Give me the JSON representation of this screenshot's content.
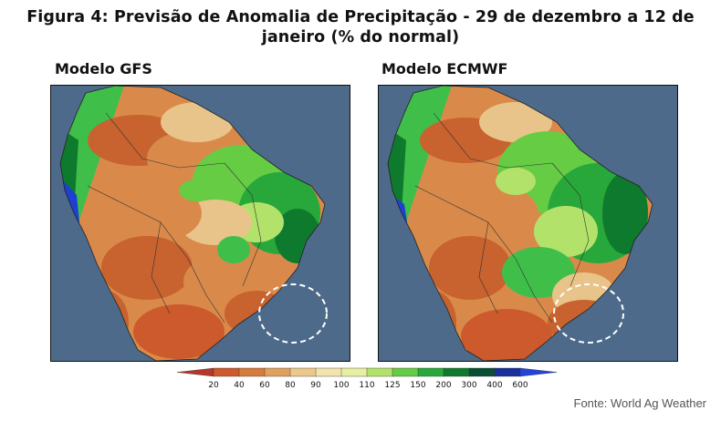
{
  "figure": {
    "title": "Figura 4: Previsão de Anomalia de Precipitação - 29 de dezembro a 12 de janeiro (% do normal)",
    "source": "Fonte: World Ag Weather"
  },
  "maps": [
    {
      "label": "Modelo GFS"
    },
    {
      "label": "Modelo ECMWF"
    }
  ],
  "legend": {
    "ticks": [
      "20",
      "40",
      "60",
      "80",
      "90",
      "100",
      "110",
      "125",
      "150",
      "200",
      "300",
      "400",
      "600"
    ],
    "colors": [
      "#b5372a",
      "#cc5a2c",
      "#d77a3d",
      "#e0a05e",
      "#ecc88a",
      "#f3e3ad",
      "#e6f0a0",
      "#b3e26a",
      "#66cc44",
      "#28a83a",
      "#0f7a2e",
      "#0a4f35",
      "#1a2f9a",
      "#2244dd"
    ]
  },
  "colors": {
    "ocean": "#4d6a8a",
    "dry_strong": "#c8622f",
    "dry": "#d98a4a",
    "neutral": "#e8c48a",
    "wet": "#3fbf4a",
    "very_wet": "#0e7a2e",
    "extreme": "#1e40d0"
  }
}
